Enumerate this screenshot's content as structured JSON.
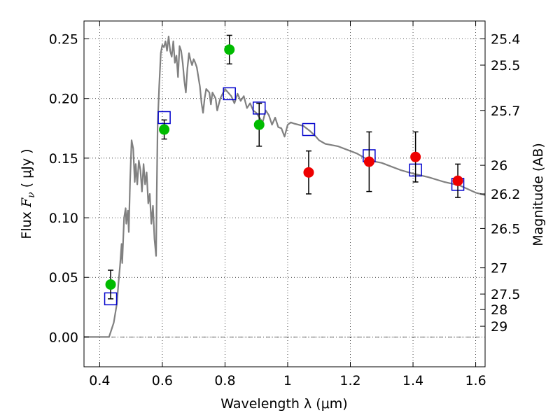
{
  "chart_data": {
    "type": "scatter",
    "title": "",
    "xlabel": "Wavelength  λ (μm)",
    "ylabel": "Flux  F_ν  ( μJy )",
    "ylabel_parts": {
      "prefix": "Flux  ",
      "symbol": "F",
      "subscript": "ν",
      "suffix": "  ( μJy )"
    },
    "y2label": "Magnitude (AB)",
    "xlim": [
      0.35,
      1.63
    ],
    "ylim": [
      -0.025,
      0.265
    ],
    "grid": true,
    "x_ticks": [
      0.4,
      0.6,
      0.8,
      1.0,
      1.2,
      1.4,
      1.6
    ],
    "x_tick_labels": [
      "0.4",
      "0.6",
      "0.8",
      "1",
      "1.2",
      "1.4",
      "1.6"
    ],
    "y_ticks": [
      0.0,
      0.05,
      0.1,
      0.15,
      0.2,
      0.25
    ],
    "y_tick_labels": [
      "0.00",
      "0.05",
      "0.10",
      "0.15",
      "0.20",
      "0.25"
    ],
    "y2_ticks": [
      {
        "label": "25.4",
        "flux": 0.25
      },
      {
        "label": "25.5",
        "flux": 0.228
      },
      {
        "label": "25.7",
        "flux": 0.19
      },
      {
        "label": "26",
        "flux": 0.144
      },
      {
        "label": "26.2",
        "flux": 0.12
      },
      {
        "label": "26.5",
        "flux": 0.091
      },
      {
        "label": "27",
        "flux": 0.058
      },
      {
        "label": "27.5",
        "flux": 0.036
      },
      {
        "label": "28",
        "flux": 0.023
      },
      {
        "label": "29",
        "flux": 0.009
      }
    ],
    "zero_line": 0.0,
    "series": [
      {
        "style": "line",
        "color": "#808080",
        "points": [
          [
            0.35,
            0.0
          ],
          [
            0.43,
            0.0
          ],
          [
            0.445,
            0.012
          ],
          [
            0.455,
            0.028
          ],
          [
            0.46,
            0.045
          ],
          [
            0.465,
            0.06
          ],
          [
            0.47,
            0.078
          ],
          [
            0.472,
            0.062
          ],
          [
            0.478,
            0.1
          ],
          [
            0.483,
            0.108
          ],
          [
            0.485,
            0.095
          ],
          [
            0.49,
            0.106
          ],
          [
            0.493,
            0.088
          ],
          [
            0.497,
            0.13
          ],
          [
            0.502,
            0.165
          ],
          [
            0.507,
            0.158
          ],
          [
            0.512,
            0.13
          ],
          [
            0.515,
            0.145
          ],
          [
            0.52,
            0.128
          ],
          [
            0.525,
            0.148
          ],
          [
            0.53,
            0.14
          ],
          [
            0.535,
            0.122
          ],
          [
            0.54,
            0.145
          ],
          [
            0.545,
            0.128
          ],
          [
            0.55,
            0.138
          ],
          [
            0.555,
            0.112
          ],
          [
            0.56,
            0.12
          ],
          [
            0.565,
            0.095
          ],
          [
            0.57,
            0.11
          ],
          [
            0.575,
            0.082
          ],
          [
            0.58,
            0.068
          ],
          [
            0.582,
            0.12
          ],
          [
            0.585,
            0.178
          ],
          [
            0.59,
            0.21
          ],
          [
            0.595,
            0.238
          ],
          [
            0.6,
            0.245
          ],
          [
            0.605,
            0.243
          ],
          [
            0.61,
            0.248
          ],
          [
            0.615,
            0.24
          ],
          [
            0.62,
            0.252
          ],
          [
            0.625,
            0.24
          ],
          [
            0.63,
            0.235
          ],
          [
            0.635,
            0.248
          ],
          [
            0.64,
            0.23
          ],
          [
            0.645,
            0.236
          ],
          [
            0.65,
            0.218
          ],
          [
            0.655,
            0.244
          ],
          [
            0.66,
            0.24
          ],
          [
            0.665,
            0.23
          ],
          [
            0.67,
            0.215
          ],
          [
            0.675,
            0.205
          ],
          [
            0.68,
            0.225
          ],
          [
            0.685,
            0.238
          ],
          [
            0.69,
            0.232
          ],
          [
            0.695,
            0.228
          ],
          [
            0.7,
            0.233
          ],
          [
            0.705,
            0.23
          ],
          [
            0.71,
            0.226
          ],
          [
            0.72,
            0.21
          ],
          [
            0.725,
            0.196
          ],
          [
            0.73,
            0.188
          ],
          [
            0.735,
            0.2
          ],
          [
            0.74,
            0.208
          ],
          [
            0.75,
            0.205
          ],
          [
            0.755,
            0.195
          ],
          [
            0.76,
            0.205
          ],
          [
            0.77,
            0.2
          ],
          [
            0.775,
            0.19
          ],
          [
            0.785,
            0.2
          ],
          [
            0.8,
            0.208
          ],
          [
            0.81,
            0.205
          ],
          [
            0.82,
            0.202
          ],
          [
            0.83,
            0.196
          ],
          [
            0.84,
            0.204
          ],
          [
            0.85,
            0.198
          ],
          [
            0.86,
            0.202
          ],
          [
            0.87,
            0.192
          ],
          [
            0.88,
            0.196
          ],
          [
            0.89,
            0.19
          ],
          [
            0.9,
            0.188
          ],
          [
            0.92,
            0.18
          ],
          [
            0.93,
            0.19
          ],
          [
            0.94,
            0.186
          ],
          [
            0.95,
            0.178
          ],
          [
            0.96,
            0.184
          ],
          [
            0.97,
            0.176
          ],
          [
            0.98,
            0.175
          ],
          [
            0.99,
            0.168
          ],
          [
            1.0,
            0.178
          ],
          [
            1.01,
            0.18
          ],
          [
            1.02,
            0.179
          ],
          [
            1.05,
            0.177
          ],
          [
            1.07,
            0.173
          ],
          [
            1.09,
            0.168
          ],
          [
            1.1,
            0.165
          ],
          [
            1.12,
            0.162
          ],
          [
            1.14,
            0.161
          ],
          [
            1.16,
            0.16
          ],
          [
            1.18,
            0.158
          ],
          [
            1.2,
            0.156
          ],
          [
            1.22,
            0.154
          ],
          [
            1.26,
            0.148
          ],
          [
            1.3,
            0.146
          ],
          [
            1.33,
            0.143
          ],
          [
            1.36,
            0.14
          ],
          [
            1.4,
            0.137
          ],
          [
            1.45,
            0.134
          ],
          [
            1.5,
            0.13
          ],
          [
            1.55,
            0.127
          ],
          [
            1.6,
            0.121
          ],
          [
            1.63,
            0.119
          ]
        ]
      },
      {
        "style": "open-square",
        "color": "#0000cc",
        "points": [
          [
            0.435,
            0.032
          ],
          [
            0.606,
            0.184
          ],
          [
            0.814,
            0.204
          ],
          [
            0.909,
            0.192
          ],
          [
            1.067,
            0.174
          ],
          [
            1.26,
            0.152
          ],
          [
            1.408,
            0.14
          ],
          [
            1.543,
            0.128
          ]
        ]
      },
      {
        "style": "filled-circle",
        "color": "#00bb00",
        "points": [
          {
            "x": 0.435,
            "y": 0.044,
            "err": 0.012
          },
          {
            "x": 0.606,
            "y": 0.174,
            "err": 0.008
          },
          {
            "x": 0.814,
            "y": 0.241,
            "err": 0.012
          },
          {
            "x": 0.909,
            "y": 0.178,
            "err": 0.018
          }
        ]
      },
      {
        "style": "filled-circle",
        "color": "#ee0000",
        "points": [
          {
            "x": 1.067,
            "y": 0.138,
            "err": 0.018
          },
          {
            "x": 1.26,
            "y": 0.147,
            "err": 0.025
          },
          {
            "x": 1.408,
            "y": 0.151,
            "err": 0.021
          },
          {
            "x": 1.543,
            "y": 0.131,
            "err": 0.014
          }
        ]
      }
    ]
  }
}
